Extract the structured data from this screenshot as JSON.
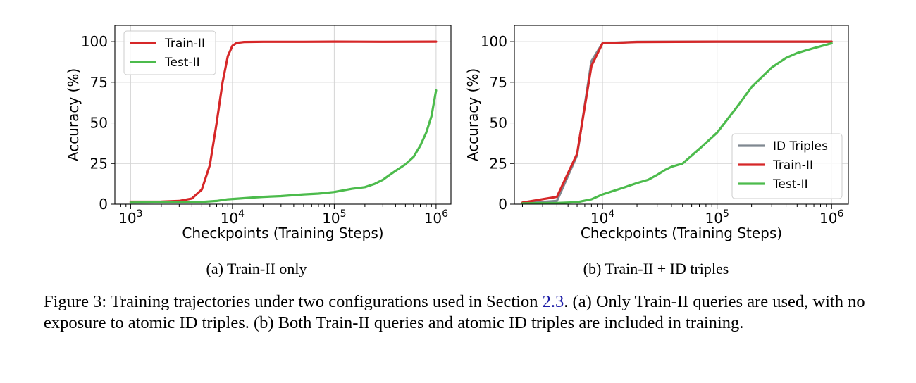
{
  "chart_data": [
    {
      "type": "line",
      "subcaption": "(a) Train-II only",
      "xlabel": "Checkpoints (Training Steps)",
      "ylabel": "Accuracy (%)",
      "xscale": "log",
      "xlim": [
        700,
        1400000
      ],
      "ylim": [
        0,
        110
      ],
      "yticks": [
        "0",
        "25",
        "50",
        "75",
        "100"
      ],
      "ytick_values": [
        0,
        25,
        50,
        75,
        100
      ],
      "xticks": [
        {
          "base": "10",
          "exp": "3",
          "value": 1000
        },
        {
          "base": "10",
          "exp": "4",
          "value": 10000
        },
        {
          "base": "10",
          "exp": "5",
          "value": 100000
        },
        {
          "base": "10",
          "exp": "6",
          "value": 1000000
        }
      ],
      "grid": true,
      "legend_position": "top-left",
      "series": [
        {
          "name": "Train-II",
          "color": "#d62728",
          "points": [
            [
              1000,
              1.5
            ],
            [
              2000,
              1.6
            ],
            [
              3000,
              2
            ],
            [
              4000,
              3.5
            ],
            [
              5000,
              9
            ],
            [
              6000,
              24
            ],
            [
              7000,
              50
            ],
            [
              8000,
              75
            ],
            [
              9000,
              91
            ],
            [
              10000,
              97.5
            ],
            [
              11000,
              99.2
            ],
            [
              13000,
              99.8
            ],
            [
              20000,
              99.9
            ],
            [
              50000,
              99.9
            ],
            [
              100000,
              100
            ],
            [
              300000,
              99.9
            ],
            [
              1000000,
              100
            ]
          ]
        },
        {
          "name": "Test-II",
          "color": "#4cbb4c",
          "points": [
            [
              1000,
              1
            ],
            [
              3000,
              1.2
            ],
            [
              5000,
              1.4
            ],
            [
              7000,
              2
            ],
            [
              9000,
              3
            ],
            [
              12000,
              3.5
            ],
            [
              15000,
              4
            ],
            [
              20000,
              4.5
            ],
            [
              30000,
              5
            ],
            [
              50000,
              6
            ],
            [
              70000,
              6.5
            ],
            [
              100000,
              7.5
            ],
            [
              150000,
              9.5
            ],
            [
              200000,
              10.5
            ],
            [
              250000,
              12.5
            ],
            [
              300000,
              15
            ],
            [
              350000,
              18
            ],
            [
              400000,
              20.5
            ],
            [
              500000,
              24.5
            ],
            [
              600000,
              29
            ],
            [
              700000,
              36
            ],
            [
              800000,
              44
            ],
            [
              900000,
              54
            ],
            [
              1000000,
              70
            ]
          ]
        }
      ]
    },
    {
      "type": "line",
      "subcaption": "(b) Train-II + ID triples",
      "xlabel": "Checkpoints (Training Steps)",
      "ylabel": "Accuracy (%)",
      "xscale": "log",
      "xlim": [
        1700,
        1400000
      ],
      "ylim": [
        0,
        110
      ],
      "yticks": [
        "0",
        "25",
        "50",
        "75",
        "100"
      ],
      "ytick_values": [
        0,
        25,
        50,
        75,
        100
      ],
      "xticks": [
        {
          "base": "10",
          "exp": "4",
          "value": 10000
        },
        {
          "base": "10",
          "exp": "5",
          "value": 100000
        },
        {
          "base": "10",
          "exp": "6",
          "value": 1000000
        }
      ],
      "grid": true,
      "legend_position": "lower-right",
      "series": [
        {
          "name": "ID Triples",
          "color": "#7f8890",
          "points": [
            [
              2000,
              0.5
            ],
            [
              4000,
              2
            ],
            [
              6000,
              30
            ],
            [
              8000,
              88
            ],
            [
              10000,
              99
            ],
            [
              20000,
              99.9
            ],
            [
              100000,
              100
            ],
            [
              1000000,
              100
            ]
          ]
        },
        {
          "name": "Train-II",
          "color": "#d62728",
          "points": [
            [
              2000,
              1
            ],
            [
              4000,
              4.5
            ],
            [
              6000,
              31
            ],
            [
              8000,
              85
            ],
            [
              10000,
              99
            ],
            [
              20000,
              99.8
            ],
            [
              100000,
              100
            ],
            [
              1000000,
              100
            ]
          ]
        },
        {
          "name": "Test-II",
          "color": "#4cbb4c",
          "points": [
            [
              2000,
              0.5
            ],
            [
              4000,
              0.7
            ],
            [
              6000,
              1.2
            ],
            [
              8000,
              3
            ],
            [
              10000,
              6
            ],
            [
              15000,
              10
            ],
            [
              20000,
              13
            ],
            [
              25000,
              15
            ],
            [
              30000,
              18
            ],
            [
              35000,
              21
            ],
            [
              40000,
              23
            ],
            [
              50000,
              25
            ],
            [
              70000,
              34
            ],
            [
              100000,
              44
            ],
            [
              150000,
              60
            ],
            [
              200000,
              72
            ],
            [
              300000,
              84
            ],
            [
              400000,
              90
            ],
            [
              500000,
              93
            ],
            [
              700000,
              96
            ],
            [
              1000000,
              99
            ]
          ]
        }
      ]
    }
  ],
  "caption": {
    "prefix": "Figure 3: Training trajectories under two configurations used in Section ",
    "ref": "2.3",
    "suffix": ". (a) Only Train-II queries are used, with no exposure to atomic ID triples. (b) Both Train-II queries and atomic ID triples are included in training."
  }
}
